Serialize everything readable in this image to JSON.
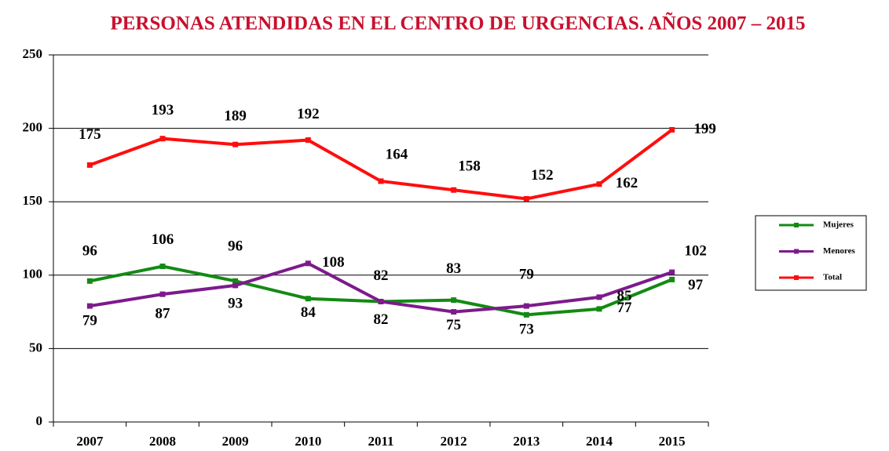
{
  "chart_data": {
    "type": "line",
    "title": "PERSONAS ATENDIDAS EN EL CENTRO DE URGENCIAS. AÑOS 2007 – 2015",
    "categories": [
      "2007",
      "2008",
      "2009",
      "2010",
      "2011",
      "2012",
      "2013",
      "2014",
      "2015"
    ],
    "series": [
      {
        "name": "Mujeres",
        "color": "#138a13",
        "values": [
          96,
          106,
          96,
          84,
          82,
          83,
          73,
          77,
          97
        ]
      },
      {
        "name": "Menores",
        "color": "#7d1a8c",
        "values": [
          79,
          87,
          93,
          108,
          82,
          75,
          79,
          85,
          102
        ]
      },
      {
        "name": "Total",
        "color": "#ff0d0d",
        "values": [
          175,
          193,
          189,
          192,
          164,
          158,
          152,
          162,
          199
        ]
      }
    ],
    "ylim": [
      0,
      250
    ],
    "yticks": [
      0,
      50,
      100,
      150,
      200,
      250
    ],
    "grid": true,
    "legend": "right"
  }
}
